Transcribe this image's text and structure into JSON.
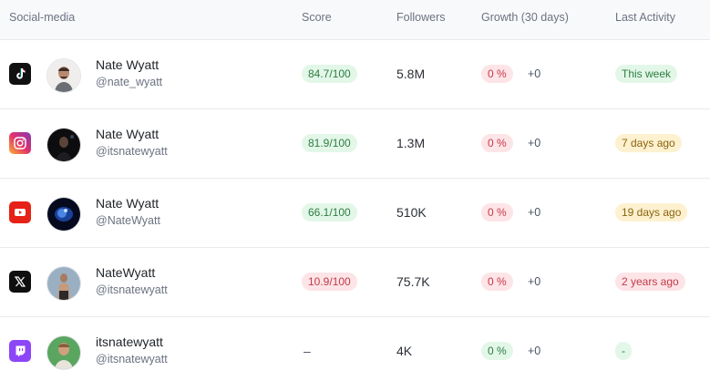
{
  "headers": {
    "social": "Social-media",
    "score": "Score",
    "followers": "Followers",
    "growth": "Growth (30 days)",
    "activity": "Last Activity"
  },
  "rows": [
    {
      "platform": "tiktok-icon",
      "name": "Nate Wyatt",
      "handle": "@nate_wyatt",
      "score": "84.7/100",
      "score_color": "green",
      "followers": "5.8M",
      "growth": "0 %",
      "delta": "+0",
      "activity": "This week",
      "activity_color": "green"
    },
    {
      "platform": "instagram-icon",
      "name": "Nate Wyatt",
      "handle": "@itsnatewyatt",
      "score": "81.9/100",
      "score_color": "green",
      "followers": "1.3M",
      "growth": "0 %",
      "delta": "+0",
      "activity": "7 days ago",
      "activity_color": "yellow"
    },
    {
      "platform": "youtube-icon",
      "name": "Nate Wyatt",
      "handle": "@NateWyatt",
      "score": "66.1/100",
      "score_color": "green",
      "followers": "510K",
      "growth": "0 %",
      "delta": "+0",
      "activity": "19 days ago",
      "activity_color": "yellow"
    },
    {
      "platform": "x-icon",
      "name": "NateWyatt",
      "handle": "@itsnatewyatt",
      "score": "10.9/100",
      "score_color": "red",
      "followers": "75.7K",
      "growth": "0 %",
      "delta": "+0",
      "activity": "2 years ago",
      "activity_color": "red"
    },
    {
      "platform": "twitch-icon",
      "name": "itsnatewyatt",
      "handle": "@itsnatewyatt",
      "score": "–",
      "score_color": "none",
      "followers": "4K",
      "growth": "0 %",
      "delta": "+0",
      "activity": "-",
      "activity_color": "green"
    }
  ]
}
